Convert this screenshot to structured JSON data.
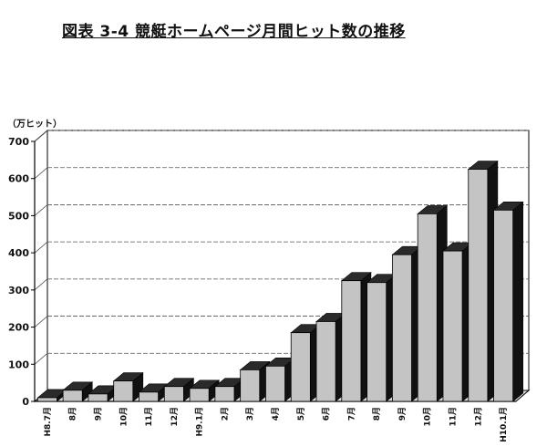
{
  "page": {
    "title": "図表 3-4 競艇ホームページ月間ヒット数の推移",
    "unit": "（万ヒット）"
  },
  "chart_data": {
    "type": "bar",
    "title": "図表 3-4 競艇ホームページ月間ヒット数の推移",
    "ylabel": "（万ヒット）",
    "xlabel": "",
    "ylim": [
      0,
      700
    ],
    "yticks": [
      0,
      100,
      200,
      300,
      400,
      500,
      600,
      700
    ],
    "grid": true,
    "bar_style": "3d",
    "colors": {
      "bar_front": "#c4c4c4",
      "bar_top": "#2a2a2a",
      "bar_side": "#111111",
      "gridline": "#555555",
      "wall": "#ffffff"
    },
    "categories": [
      "H8.7月",
      "8月",
      "9月",
      "10月",
      "11月",
      "12月",
      "H9.1月",
      "2月",
      "3月",
      "4月",
      "5月",
      "6月",
      "7月",
      "8月",
      "9月",
      "10月",
      "11月",
      "12月",
      "H10.1月"
    ],
    "values": [
      10,
      30,
      20,
      55,
      25,
      40,
      35,
      40,
      85,
      95,
      185,
      215,
      325,
      320,
      395,
      505,
      405,
      625,
      515
    ]
  }
}
